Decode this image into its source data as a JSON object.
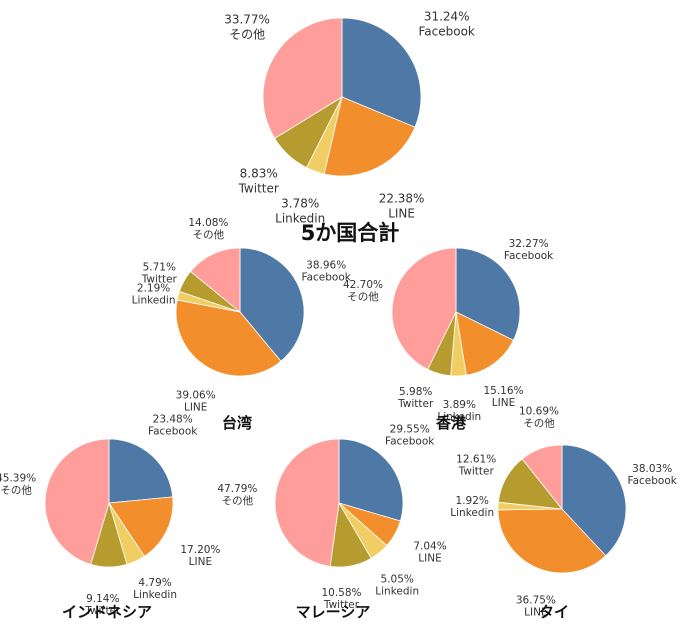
{
  "colors": {
    "Facebook": "#4e79a7",
    "LINE": "#f28e2b",
    "Linkedin": "#f1ce63",
    "Twitter": "#b69c2e",
    "その他": "#ff9d9a"
  },
  "chart_data": [
    {
      "type": "pie",
      "title": "5か国合計",
      "slices": [
        {
          "label": "Facebook",
          "value": 31.24,
          "text": "31.24%"
        },
        {
          "label": "LINE",
          "value": 22.38,
          "text": "22.38%"
        },
        {
          "label": "Linkedin",
          "value": 3.78,
          "text": "3.78%"
        },
        {
          "label": "Twitter",
          "value": 8.83,
          "text": "8.83%"
        },
        {
          "label": "その他",
          "value": 33.77,
          "text": "33.77%"
        }
      ]
    },
    {
      "type": "pie",
      "title": "台湾",
      "slices": [
        {
          "label": "Facebook",
          "value": 38.96,
          "text": "38.96%"
        },
        {
          "label": "LINE",
          "value": 39.06,
          "text": "39.06%"
        },
        {
          "label": "Linkedin",
          "value": 2.19,
          "text": "2.19%"
        },
        {
          "label": "Twitter",
          "value": 5.71,
          "text": "5.71%"
        },
        {
          "label": "その他",
          "value": 14.08,
          "text": "14.08%"
        }
      ]
    },
    {
      "type": "pie",
      "title": "香港",
      "slices": [
        {
          "label": "Facebook",
          "value": 32.27,
          "text": "32.27%"
        },
        {
          "label": "LINE",
          "value": 15.16,
          "text": "15.16%"
        },
        {
          "label": "Linkedin",
          "value": 3.89,
          "text": "3.89%"
        },
        {
          "label": "Twitter",
          "value": 5.98,
          "text": "5.98%"
        },
        {
          "label": "その他",
          "value": 42.7,
          "text": "42.70%"
        }
      ]
    },
    {
      "type": "pie",
      "title": "インドネシア",
      "slices": [
        {
          "label": "Facebook",
          "value": 23.48,
          "text": "23.48%"
        },
        {
          "label": "LINE",
          "value": 17.2,
          "text": "17.20%"
        },
        {
          "label": "Linkedin",
          "value": 4.79,
          "text": "4.79%"
        },
        {
          "label": "Twitter",
          "value": 9.14,
          "text": "9.14%"
        },
        {
          "label": "その他",
          "value": 45.39,
          "text": "45.39%"
        }
      ]
    },
    {
      "type": "pie",
      "title": "マレーシア",
      "slices": [
        {
          "label": "Facebook",
          "value": 29.55,
          "text": "29.55%"
        },
        {
          "label": "LINE",
          "value": 7.04,
          "text": "7.04%"
        },
        {
          "label": "Linkedin",
          "value": 5.05,
          "text": "5.05%"
        },
        {
          "label": "Twitter",
          "value": 10.58,
          "text": "10.58%"
        },
        {
          "label": "その他",
          "value": 47.79,
          "text": "47.79%"
        }
      ]
    },
    {
      "type": "pie",
      "title": "タイ",
      "slices": [
        {
          "label": "Facebook",
          "value": 38.03,
          "text": "38.03%"
        },
        {
          "label": "LINE",
          "value": 36.75,
          "text": "36.75%"
        },
        {
          "label": "Linkedin",
          "value": 1.92,
          "text": "1.92%"
        },
        {
          "label": "Twitter",
          "value": 12.61,
          "text": "12.61%"
        },
        {
          "label": "その他",
          "value": 10.69,
          "text": "10.69%"
        }
      ]
    }
  ]
}
